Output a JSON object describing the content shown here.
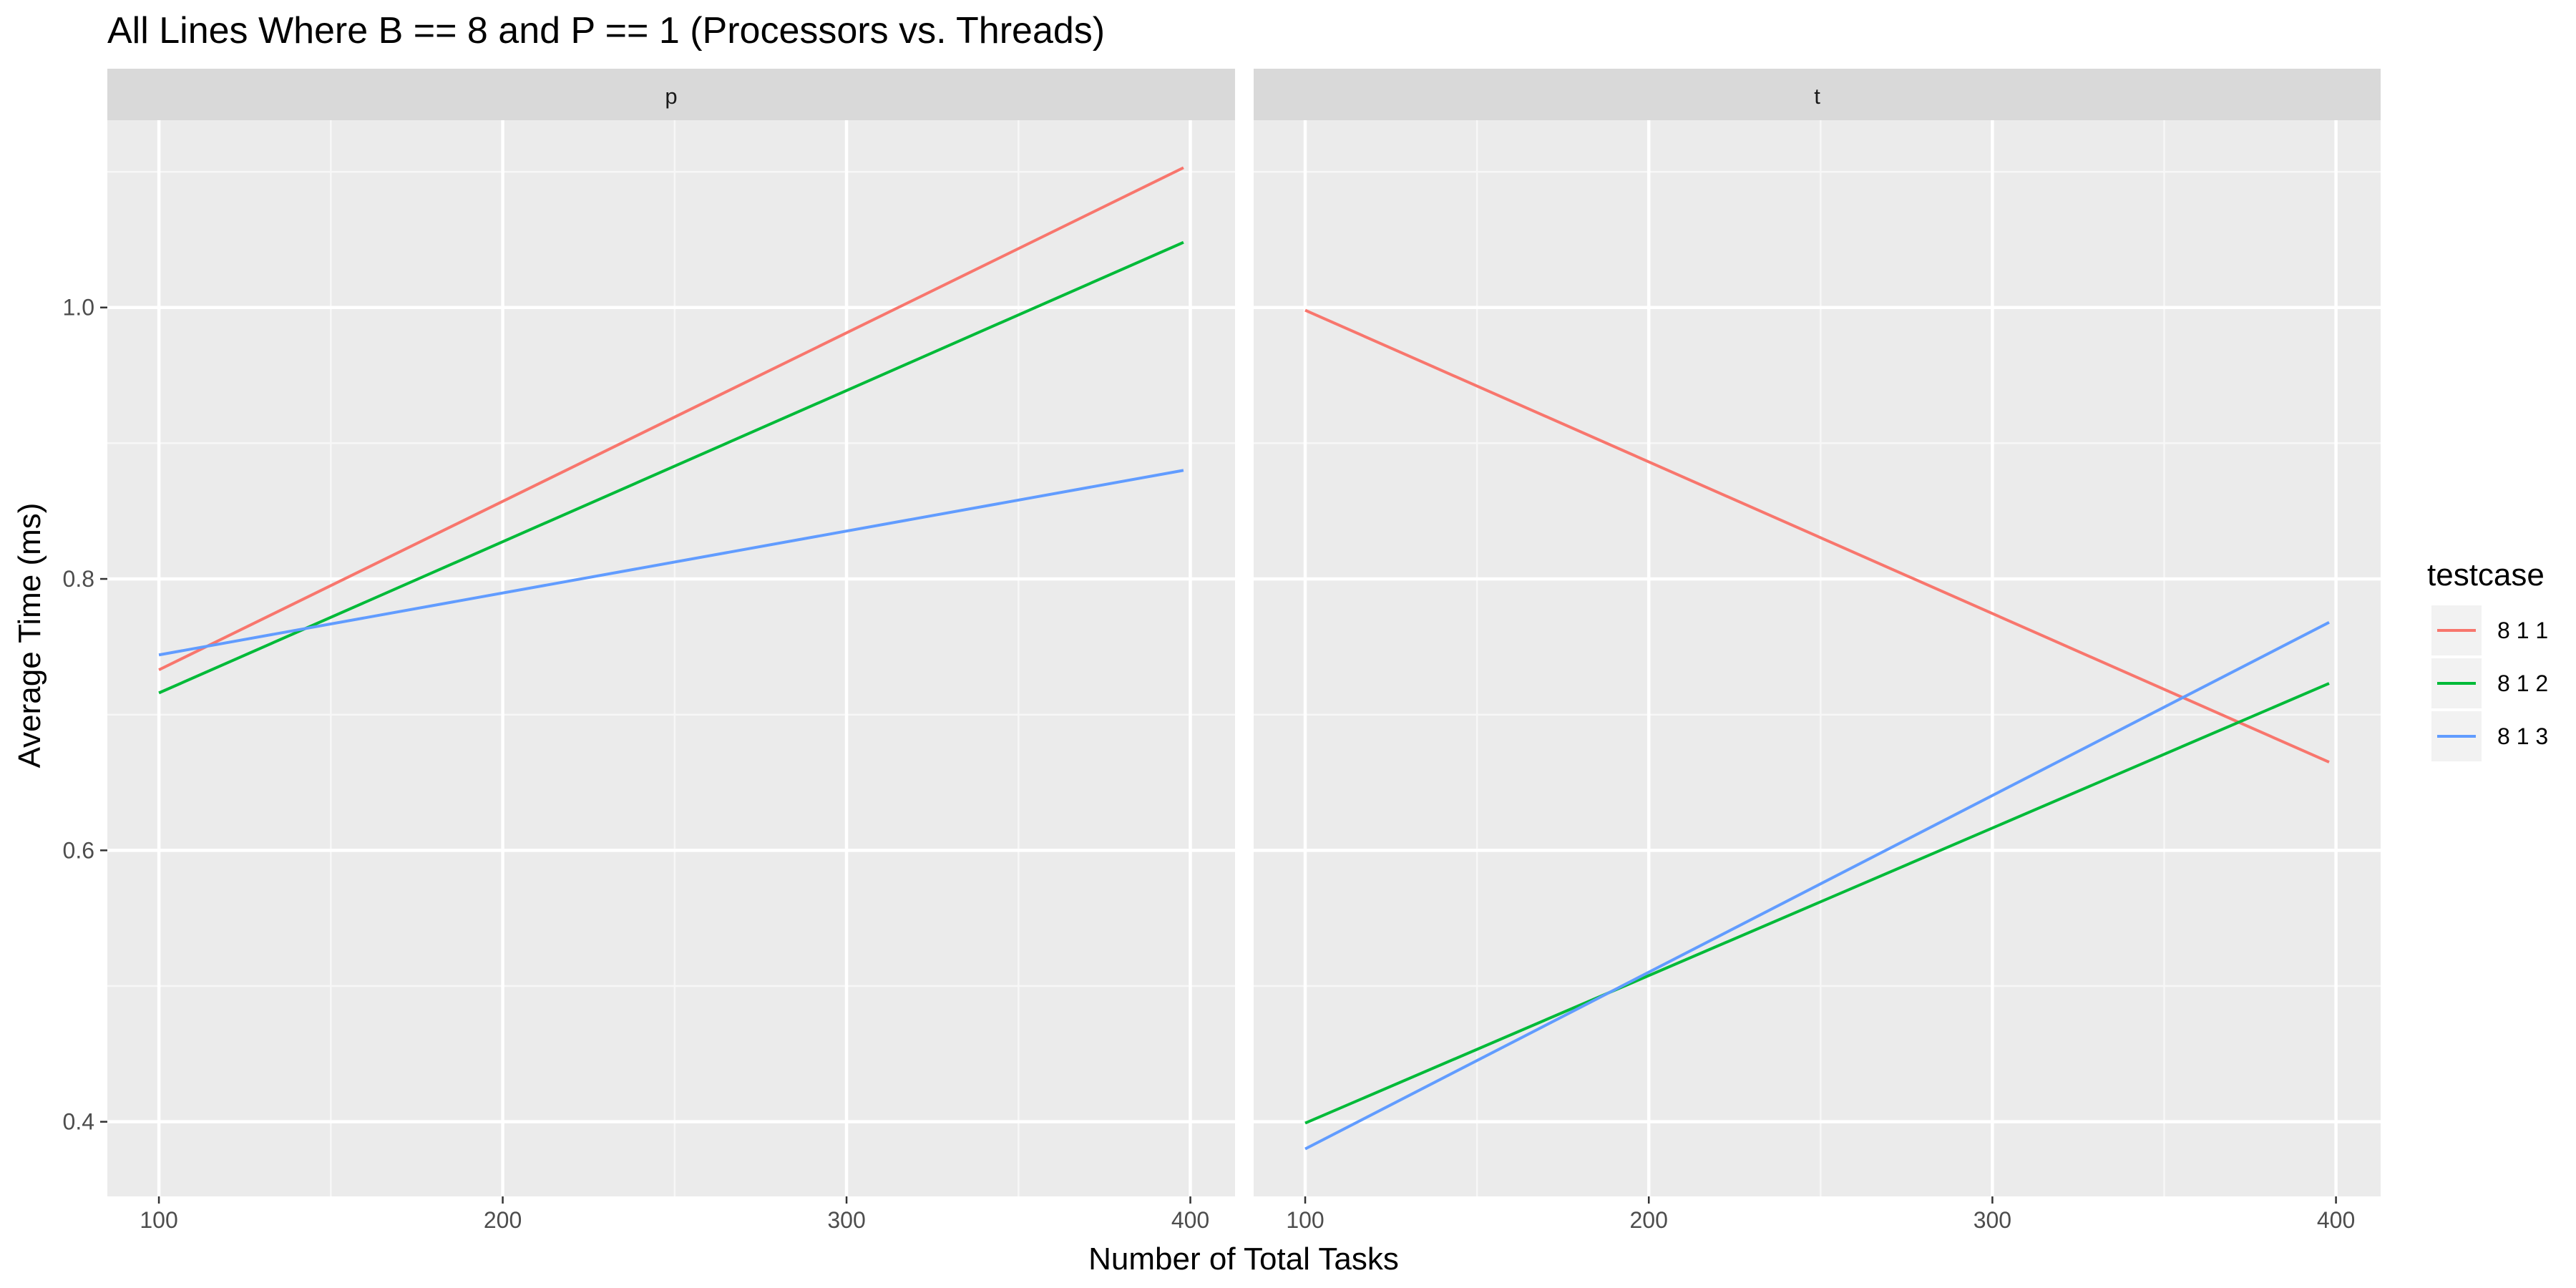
{
  "chart_data": {
    "type": "line",
    "title": "All Lines Where B == 8 and P == 1 (Processors vs. Threads)",
    "xlabel": "Number of Total Tasks",
    "ylabel": "Average Time (ms)",
    "xlim": [
      85,
      413
    ],
    "ylim": [
      0.345,
      1.138
    ],
    "x_ticks": [
      100,
      200,
      300,
      400
    ],
    "y_ticks": [
      0.4,
      0.6,
      0.8,
      1.0
    ],
    "x_tick_labels": [
      "100",
      "200",
      "300",
      "400"
    ],
    "y_tick_labels": [
      "0.4",
      "0.6",
      "0.8",
      "1.0"
    ],
    "grid": true,
    "legend": {
      "title": "testcase",
      "position": "right",
      "entries": [
        "8 1 1",
        "8 1 2",
        "8 1 3"
      ]
    },
    "colors": {
      "8 1 1": "#F8766D",
      "8 1 2": "#00BA38",
      "8 1 3": "#619CFF"
    },
    "panels": [
      {
        "label": "p",
        "series": [
          {
            "name": "8 1 1",
            "x": [
              100,
              398
            ],
            "y": [
              0.733,
              1.103
            ]
          },
          {
            "name": "8 1 2",
            "x": [
              100,
              398
            ],
            "y": [
              0.716,
              1.048
            ]
          },
          {
            "name": "8 1 3",
            "x": [
              100,
              398
            ],
            "y": [
              0.744,
              0.88
            ]
          }
        ]
      },
      {
        "label": "t",
        "series": [
          {
            "name": "8 1 1",
            "x": [
              100,
              398
            ],
            "y": [
              0.998,
              0.665
            ]
          },
          {
            "name": "8 1 2",
            "x": [
              100,
              398
            ],
            "y": [
              0.399,
              0.723
            ]
          },
          {
            "name": "8 1 3",
            "x": [
              100,
              398
            ],
            "y": [
              0.38,
              0.768
            ]
          }
        ]
      }
    ]
  }
}
